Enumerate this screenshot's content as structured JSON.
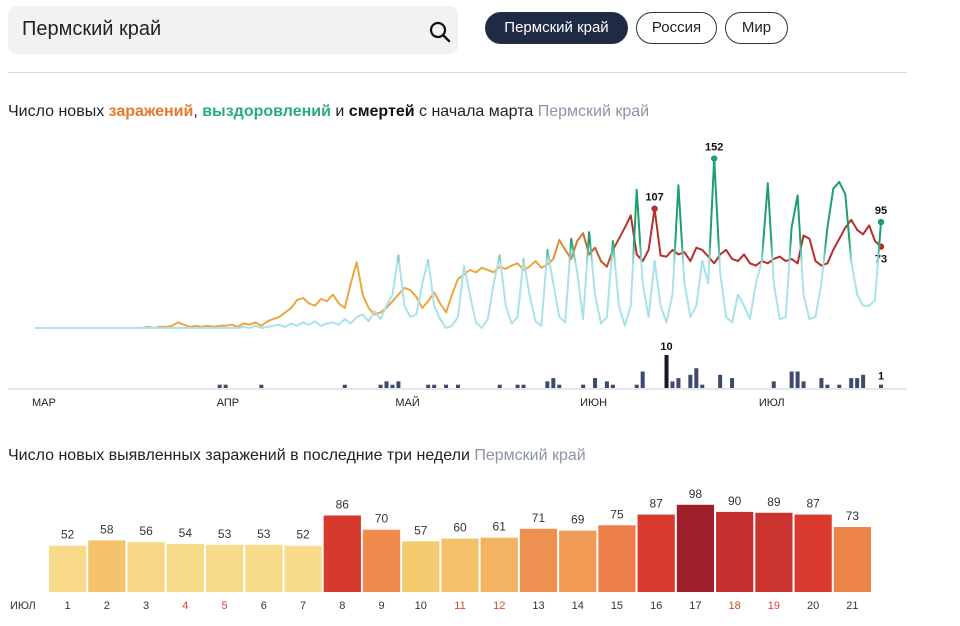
{
  "search": {
    "query": "Пермский край"
  },
  "regions": [
    "Пермский край",
    "Россия",
    "Мир"
  ],
  "active_region": 0,
  "chart_data": [
    {
      "type": "line",
      "title": [
        {
          "text": "Число новых "
        },
        {
          "text": "заражений",
          "color": "#e8772b"
        },
        {
          "text": ", "
        },
        {
          "text": "выздоровлений",
          "color": "#27ad78"
        },
        {
          "text": " и "
        },
        {
          "text": "смертей",
          "color": "#111111"
        },
        {
          "text": " с начала марта"
        }
      ],
      "subtitle": "Пермский край",
      "categories": [
        "МАР",
        null,
        null,
        null,
        null,
        null,
        null,
        null,
        null,
        null,
        null,
        null,
        null,
        null,
        null,
        null,
        null,
        null,
        null,
        null,
        null,
        null,
        null,
        null,
        null,
        null,
        null,
        null,
        null,
        null,
        null,
        "АПР",
        null,
        null,
        null,
        null,
        null,
        null,
        null,
        null,
        null,
        null,
        null,
        null,
        null,
        null,
        null,
        null,
        null,
        null,
        null,
        null,
        null,
        null,
        null,
        null,
        null,
        null,
        null,
        null,
        null,
        "МАЙ",
        null,
        null,
        null,
        null,
        null,
        null,
        null,
        null,
        null,
        null,
        null,
        null,
        null,
        null,
        null,
        null,
        null,
        null,
        null,
        null,
        null,
        null,
        null,
        null,
        null,
        null,
        null,
        null,
        null,
        null,
        "ИЮН",
        null,
        null,
        null,
        null,
        null,
        null,
        null,
        null,
        null,
        null,
        null,
        null,
        null,
        null,
        null,
        null,
        null,
        null,
        null,
        null,
        null,
        null,
        null,
        null,
        null,
        null,
        null,
        null,
        null,
        "ИЮЛ",
        null,
        null,
        null,
        null,
        null,
        null,
        null,
        null,
        null,
        null,
        null,
        null,
        null,
        null,
        null,
        null,
        null,
        null,
        null,
        null
      ],
      "series": [
        {
          "colors": [
            "#eaa640",
            "#b3302b"
          ],
          "values": [
            0,
            0,
            0,
            0,
            0,
            0,
            0,
            0,
            0,
            0,
            0,
            0,
            0,
            0,
            0,
            0,
            0,
            0,
            0,
            1,
            0,
            1,
            1,
            2,
            5,
            3,
            1,
            2,
            1,
            2,
            1,
            2,
            2,
            3,
            1,
            4,
            3,
            5,
            2,
            6,
            8,
            10,
            14,
            18,
            25,
            27,
            22,
            20,
            26,
            24,
            30,
            22,
            18,
            40,
            59,
            30,
            18,
            12,
            14,
            18,
            24,
            30,
            36,
            34,
            28,
            18,
            24,
            32,
            22,
            14,
            30,
            44,
            48,
            52,
            50,
            54,
            52,
            50,
            55,
            53,
            56,
            58,
            52,
            55,
            60,
            54,
            57,
            62,
            79,
            70,
            62,
            78,
            85,
            66,
            72,
            60,
            55,
            70,
            80,
            90,
            101,
            66,
            60,
            70,
            107,
            65,
            64,
            70,
            66,
            68,
            60,
            72,
            70,
            64,
            58,
            66,
            70,
            62,
            60,
            66,
            58,
            56,
            60,
            58,
            62,
            64,
            60,
            62,
            58,
            83,
            80,
            60,
            56,
            58,
            70,
            80,
            90,
            97,
            88,
            84,
            92,
            78,
            73
          ]
        },
        {
          "colors": [
            "#a9e2e8",
            "#1f9f6f"
          ],
          "values": [
            0,
            0,
            0,
            0,
            0,
            0,
            0,
            0,
            0,
            0,
            0,
            0,
            0,
            0,
            0,
            0,
            0,
            0,
            0,
            0,
            0,
            0,
            0,
            0,
            0,
            0,
            0,
            0,
            0,
            0,
            0,
            0,
            0,
            0,
            0,
            1,
            0,
            2,
            0,
            1,
            2,
            3,
            1,
            4,
            2,
            5,
            3,
            6,
            2,
            4,
            5,
            3,
            8,
            4,
            10,
            12,
            6,
            15,
            8,
            20,
            30,
            65,
            20,
            10,
            12,
            40,
            61,
            20,
            8,
            0,
            2,
            10,
            56,
            30,
            5,
            0,
            8,
            40,
            65,
            20,
            4,
            10,
            62,
            30,
            6,
            2,
            70,
            40,
            10,
            5,
            80,
            50,
            8,
            86,
            30,
            4,
            10,
            78,
            20,
            2,
            20,
            124,
            40,
            10,
            60,
            20,
            5,
            30,
            128,
            40,
            10,
            20,
            60,
            40,
            152,
            50,
            10,
            5,
            30,
            20,
            8,
            40,
            60,
            130,
            40,
            8,
            10,
            90,
            119,
            30,
            8,
            10,
            40,
            90,
            125,
            131,
            120,
            60,
            30,
            20,
            20,
            25,
            95
          ]
        },
        {
          "type": "bar",
          "color": "#3d4a6e",
          "values": [
            0,
            0,
            0,
            0,
            0,
            0,
            0,
            0,
            0,
            0,
            0,
            0,
            0,
            0,
            0,
            0,
            0,
            0,
            0,
            0,
            0,
            0,
            0,
            0,
            0,
            0,
            0,
            0,
            0,
            0,
            0,
            1,
            1,
            0,
            0,
            0,
            0,
            0,
            1,
            0,
            0,
            0,
            0,
            0,
            0,
            0,
            0,
            0,
            0,
            0,
            0,
            0,
            1,
            0,
            0,
            0,
            0,
            0,
            1,
            2,
            1,
            2,
            0,
            0,
            0,
            0,
            1,
            1,
            0,
            1,
            0,
            1,
            0,
            0,
            0,
            0,
            0,
            0,
            1,
            0,
            0,
            1,
            1,
            0,
            0,
            0,
            2,
            3,
            1,
            0,
            0,
            0,
            1,
            0,
            3,
            0,
            2,
            1,
            0,
            0,
            0,
            1,
            5,
            0,
            0,
            0,
            10,
            2,
            3,
            0,
            4,
            6,
            1,
            0,
            0,
            4,
            0,
            3,
            0,
            0,
            0,
            0,
            0,
            0,
            2,
            0,
            0,
            5,
            5,
            2,
            0,
            0,
            3,
            1,
            0,
            1,
            0,
            3,
            3,
            4,
            0,
            0,
            1
          ]
        }
      ]
    },
    {
      "type": "bar",
      "title": "Число новых выявленных заражений в последние три недели",
      "subtitle": "Пермский край",
      "x_label": "ИЮЛ",
      "categories": [
        "1",
        "2",
        "3",
        "4",
        "5",
        "6",
        "7",
        "8",
        "9",
        "10",
        "11",
        "12",
        "13",
        "14",
        "15",
        "16",
        "17",
        "18",
        "19",
        "20",
        "21"
      ],
      "category_colors": [
        "#333333",
        "#333333",
        "#333333",
        "#d9432f",
        "#d9432f",
        "#333333",
        "#333333",
        "#333333",
        "#333333",
        "#333333",
        "#d9432f",
        "#d9432f",
        "#333333",
        "#333333",
        "#333333",
        "#333333",
        "#333333",
        "#d9432f",
        "#d9432f",
        "#333333",
        "#333333"
      ],
      "values": [
        52,
        58,
        56,
        54,
        53,
        53,
        52,
        86,
        70,
        57,
        60,
        61,
        71,
        69,
        75,
        87,
        98,
        90,
        89,
        87,
        73
      ],
      "colors": [
        "#f8da88",
        "#f4c36b",
        "#f7d786",
        "#f7da88",
        "#f8db89",
        "#f8db89",
        "#f8dc8a",
        "#d63a2c",
        "#ee8b4d",
        "#f5cb70",
        "#f4c06a",
        "#f2b463",
        "#ee9050",
        "#f09a55",
        "#ec7f47",
        "#d93a2d",
        "#a01f2d",
        "#c3302e",
        "#cc3430",
        "#d93a2d",
        "#ed8449"
      ]
    }
  ]
}
